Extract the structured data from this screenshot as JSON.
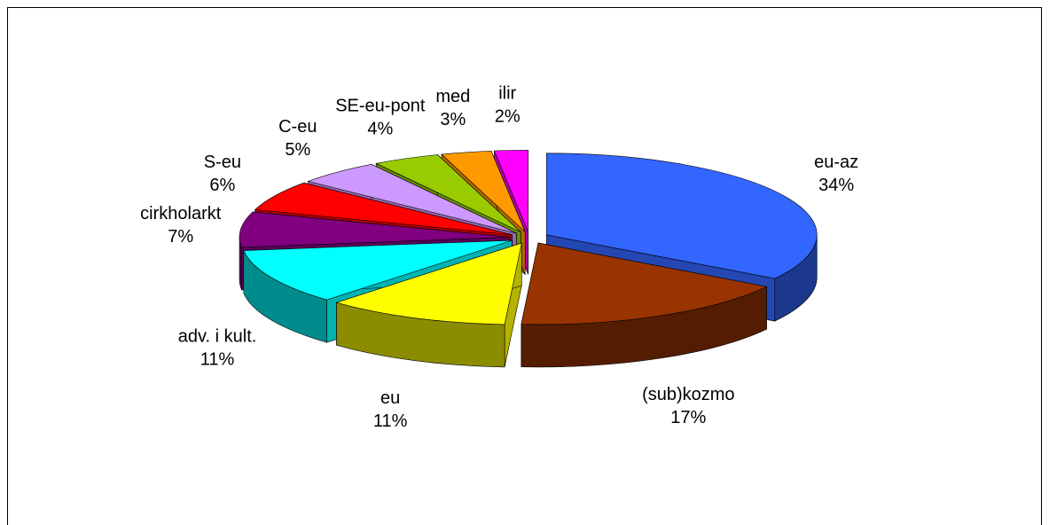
{
  "chart_data": {
    "type": "pie",
    "categories": [
      "eu-az",
      "(sub)kozmo",
      "eu",
      "adv. i kult.",
      "cirkholarkt",
      "S-eu",
      "C-eu",
      "SE-eu-pont",
      "med",
      "ilir"
    ],
    "values": [
      34,
      17,
      11,
      11,
      7,
      6,
      5,
      4,
      3,
      2
    ],
    "value_labels": [
      "34%",
      "17%",
      "11%",
      "11%",
      "7%",
      "6%",
      "5%",
      "4%",
      "3%",
      "2%"
    ],
    "colors": [
      "#3366ff",
      "#993300",
      "#ffff00",
      "#00ffff",
      "#800080",
      "#ff0000",
      "#cc99ff",
      "#99cc00",
      "#ff9900",
      "#ff00ff"
    ],
    "exploded": true,
    "three_d": true
  }
}
